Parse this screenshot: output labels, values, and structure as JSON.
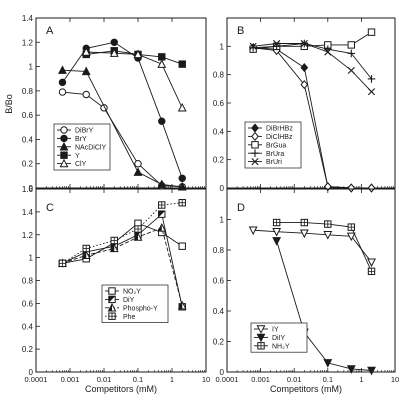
{
  "figure": {
    "ylabel": "B/Bo",
    "xlabel": "Competitors (mM)",
    "xticks": [
      "0.0001",
      "0.001",
      "0.01",
      "0.1",
      "1",
      "10"
    ]
  },
  "chart_data": [
    {
      "type": "line",
      "panel_label": "A",
      "xscale": "log",
      "xlim": [
        0.0001,
        10
      ],
      "ylim": [
        0,
        1.4
      ],
      "yticks": [
        "0",
        "0.2",
        "0.4",
        "0.6",
        "0.8",
        "1",
        "1.2",
        "1.4"
      ],
      "legend_position": "lower-left",
      "series": [
        {
          "name": "DiBrY",
          "marker": "circle-open",
          "line": "solid",
          "x": [
            0.0006,
            0.003,
            0.01,
            0.1,
            0.5,
            2
          ],
          "y": [
            0.79,
            0.77,
            0.66,
            0.2,
            0.02,
            0.01
          ]
        },
        {
          "name": "BrY",
          "marker": "circle-filled",
          "line": "solid",
          "x": [
            0.0006,
            0.003,
            0.02,
            0.1,
            0.5,
            2
          ],
          "y": [
            0.87,
            1.15,
            1.2,
            1.07,
            0.55,
            0.08
          ]
        },
        {
          "name": "NAcDiClY",
          "marker": "triangle-filled",
          "line": "solid",
          "x": [
            0.0006,
            0.003,
            0.1,
            0.5,
            2
          ],
          "y": [
            0.97,
            0.96,
            0.13,
            0.03,
            0.01
          ]
        },
        {
          "name": "Y",
          "marker": "square-filled",
          "line": "solid",
          "x": [
            0.003,
            0.02,
            0.1,
            0.5,
            2
          ],
          "y": [
            1.1,
            1.13,
            1.1,
            1.08,
            1.02
          ]
        },
        {
          "name": "ClY",
          "marker": "triangle-open",
          "line": "solid",
          "x": [
            0.003,
            0.02,
            0.1,
            0.5,
            2
          ],
          "y": [
            1.12,
            1.11,
            1.1,
            1.02,
            0.66
          ]
        }
      ]
    },
    {
      "type": "line",
      "panel_label": "B",
      "xscale": "log",
      "xlim": [
        0.0001,
        10
      ],
      "ylim": [
        0,
        1.2
      ],
      "yticks": [
        "0",
        "0.2",
        "0.4",
        "0.6",
        "0.8",
        "1"
      ],
      "legend_position": "lower-left",
      "series": [
        {
          "name": "DiBrHBz",
          "marker": "diamond-filled",
          "line": "solid",
          "x": [
            0.0006,
            0.003,
            0.02,
            0.1,
            0.5,
            2
          ],
          "y": [
            0.99,
            0.98,
            0.85,
            0.01,
            0.0,
            0.0
          ]
        },
        {
          "name": "DiClHBz",
          "marker": "diamond-open",
          "line": "solid",
          "x": [
            0.0006,
            0.003,
            0.02,
            0.1,
            0.5,
            2
          ],
          "y": [
            0.99,
            0.97,
            0.73,
            0.01,
            0.0,
            0.0
          ]
        },
        {
          "name": "BrGua",
          "marker": "square-open",
          "line": "solid",
          "x": [
            0.0006,
            0.003,
            0.02,
            0.1,
            0.5,
            2
          ],
          "y": [
            0.98,
            1.0,
            1.0,
            1.01,
            1.01,
            1.1
          ]
        },
        {
          "name": "BrUra",
          "marker": "plus",
          "line": "solid",
          "x": [
            0.0006,
            0.003,
            0.02,
            0.1,
            0.5,
            2
          ],
          "y": [
            0.99,
            1.0,
            1.02,
            0.98,
            0.95,
            0.77
          ]
        },
        {
          "name": "BrUri",
          "marker": "x",
          "line": "solid",
          "x": [
            0.0006,
            0.003,
            0.02,
            0.1,
            0.5,
            2
          ],
          "y": [
            1.0,
            1.02,
            1.02,
            0.96,
            0.83,
            0.68
          ]
        }
      ]
    },
    {
      "type": "line",
      "panel_label": "C",
      "xscale": "log",
      "xlim": [
        0.0001,
        10
      ],
      "ylim": [
        0,
        1.6
      ],
      "yticks": [
        "0",
        "0.2",
        "0.4",
        "0.6",
        "0.8",
        "1",
        "1.2",
        "1.4",
        "1.6"
      ],
      "legend_position": "lower-right",
      "series": [
        {
          "name": "NO₂Y",
          "marker": "square-open",
          "line": "solid",
          "x": [
            0.0006,
            0.003,
            0.02,
            0.1,
            0.5,
            2
          ],
          "y": [
            0.95,
            0.99,
            1.13,
            1.3,
            1.22,
            1.1
          ]
        },
        {
          "name": "DiY",
          "marker": "square-half",
          "line": "solid",
          "x": [
            0.0006,
            0.003,
            0.02,
            0.1,
            0.5,
            2
          ],
          "y": [
            0.95,
            1.05,
            1.1,
            1.2,
            1.38,
            0.57
          ]
        },
        {
          "name": "Phospho-Y",
          "marker": "triangle-half",
          "line": "dashed",
          "x": [
            0.0006,
            0.003,
            0.02,
            0.1,
            0.5,
            2
          ],
          "y": [
            0.95,
            1.02,
            1.08,
            1.18,
            1.26,
            0.58
          ]
        },
        {
          "name": "Phe",
          "marker": "square-cross",
          "line": "dotted",
          "x": [
            0.0006,
            0.003,
            0.02,
            0.1,
            0.5,
            2
          ],
          "y": [
            0.95,
            1.08,
            1.15,
            1.25,
            1.46,
            1.48
          ]
        }
      ]
    },
    {
      "type": "line",
      "panel_label": "D",
      "xscale": "log",
      "xlim": [
        0.0001,
        10
      ],
      "ylim": [
        0,
        1.2
      ],
      "yticks": [
        "0",
        "0.2",
        "0.4",
        "0.6",
        "0.8",
        "1"
      ],
      "legend_position": "bottom-center",
      "series": [
        {
          "name": "IY",
          "marker": "triangle-down-open",
          "line": "solid",
          "x": [
            0.0006,
            0.003,
            0.02,
            0.1,
            0.5,
            2
          ],
          "y": [
            0.93,
            0.92,
            0.91,
            0.9,
            0.89,
            0.72
          ]
        },
        {
          "name": "DiIY",
          "marker": "triangle-down-filled",
          "line": "solid",
          "x": [
            0.003,
            0.02,
            0.1,
            0.5,
            2
          ],
          "y": [
            0.86,
            0.26,
            0.06,
            0.02,
            0.01
          ]
        },
        {
          "name": "NH₂Y",
          "marker": "square-cross",
          "line": "solid",
          "x": [
            0.003,
            0.02,
            0.1,
            0.5,
            2
          ],
          "y": [
            0.98,
            0.98,
            0.97,
            0.95,
            0.66
          ]
        }
      ]
    }
  ]
}
